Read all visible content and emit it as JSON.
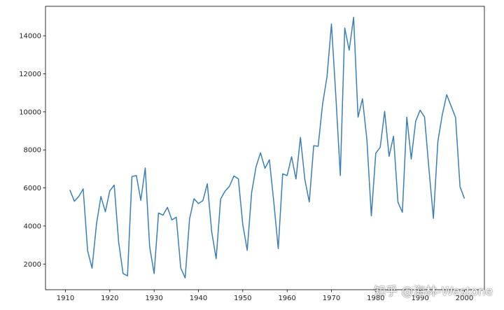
{
  "watermark": {
    "text": "知乎 @海林-Westone"
  },
  "colors": {
    "line": "#3a7fb8",
    "axes": "#000000",
    "text": "#222222",
    "background": "#ffffff"
  },
  "chart_data": {
    "type": "line",
    "title": "",
    "xlabel": "",
    "ylabel": "",
    "xlim": [
      1905.5,
      2004.5
    ],
    "ylim": [
      650,
      15550
    ],
    "grid": false,
    "xticks": [
      1910,
      1920,
      1930,
      1940,
      1950,
      1960,
      1970,
      1980,
      1990,
      2000
    ],
    "yticks": [
      2000,
      4000,
      6000,
      8000,
      10000,
      12000,
      14000
    ],
    "series": [
      {
        "x": [
          1911,
          1912,
          1913,
          1914,
          1915,
          1916,
          1917,
          1918,
          1919,
          1920,
          1921,
          1922,
          1923,
          1924,
          1925,
          1926,
          1927,
          1928,
          1929,
          1930,
          1931,
          1932,
          1933,
          1934,
          1935,
          1936,
          1937,
          1938,
          1939,
          1940,
          1941,
          1942,
          1943,
          1944,
          1945,
          1946,
          1947,
          1948,
          1949,
          1950,
          1951,
          1952,
          1953,
          1954,
          1955,
          1956,
          1957,
          1958,
          1959,
          1960,
          1961,
          1962,
          1963,
          1964,
          1965,
          1966,
          1967,
          1968,
          1969,
          1970,
          1971,
          1972,
          1973,
          1974,
          1975,
          1976,
          1977,
          1978,
          1979,
          1980,
          1981,
          1982,
          1983,
          1984,
          1985,
          1986,
          1987,
          1988,
          1989,
          1990,
          1991,
          1992,
          1993,
          1994,
          1995,
          1996,
          1997,
          1998,
          1999,
          2000
        ],
        "y": [
          5900,
          5300,
          5550,
          5950,
          2700,
          1780,
          4100,
          5550,
          4750,
          5850,
          6150,
          3150,
          1500,
          1380,
          6600,
          6650,
          5350,
          7050,
          2900,
          1500,
          4680,
          4570,
          4980,
          4320,
          4460,
          1800,
          1270,
          4380,
          5430,
          5180,
          5330,
          6220,
          3680,
          2280,
          5420,
          5830,
          6090,
          6630,
          6480,
          4080,
          2720,
          5760,
          7120,
          7850,
          7030,
          7480,
          5250,
          2810,
          6740,
          6650,
          7640,
          6470,
          8660,
          6450,
          5260,
          8220,
          8190,
          10400,
          11850,
          14620,
          10800,
          6650,
          14410,
          13240,
          14970,
          9720,
          10690,
          8520,
          4530,
          7830,
          8140,
          10030,
          7660,
          8720,
          5250,
          4720,
          9720,
          7520,
          9510,
          10090,
          9730,
          6970,
          4400,
          8430,
          9850,
          10900,
          10300,
          9700,
          6070,
          5440
        ]
      }
    ]
  }
}
